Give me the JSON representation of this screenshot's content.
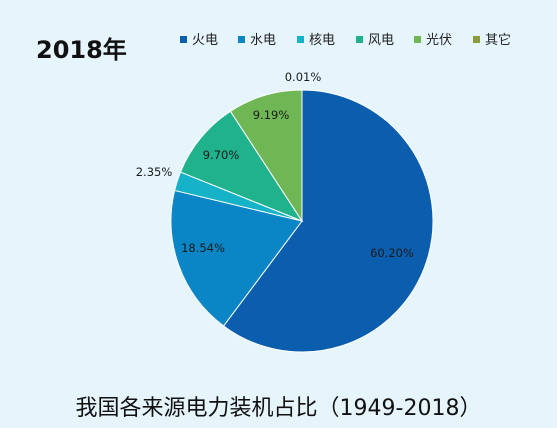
{
  "header": {
    "year": "2018年"
  },
  "caption": "我国各来源电力装机占比（1949-2018）",
  "chart_data": {
    "type": "pie",
    "title": "2018年",
    "legend_position": "top",
    "slices": [
      {
        "name": "火电",
        "value": 60.2,
        "label": "60.20%",
        "color": "#0b5eae"
      },
      {
        "name": "水电",
        "value": 18.54,
        "label": "18.54%",
        "color": "#0a86c6"
      },
      {
        "name": "核电",
        "value": 2.35,
        "label": "2.35%",
        "color": "#16b3c8"
      },
      {
        "name": "风电",
        "value": 9.7,
        "label": "9.70%",
        "color": "#20b28c"
      },
      {
        "name": "光伏",
        "value": 9.19,
        "label": "9.19%",
        "color": "#6fb754"
      },
      {
        "name": "其它",
        "value": 0.01,
        "label": "0.01%",
        "color": "#8a9a3c"
      }
    ]
  }
}
